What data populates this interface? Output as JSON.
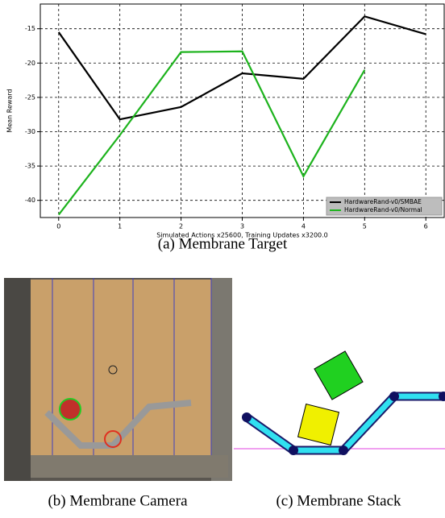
{
  "chart_data": {
    "type": "line",
    "xlabel": "Simulated Actions x25600, Training Updates x3200.0",
    "ylabel": "Mean Reward",
    "x": [
      0,
      1,
      2,
      3,
      4,
      5,
      6
    ],
    "series": [
      {
        "name": "HardwareRand-v0/SMBAE",
        "color": "#000000",
        "values": [
          -15.5,
          -28.2,
          -26.4,
          -21.5,
          -22.3,
          -13.2,
          -15.8
        ]
      },
      {
        "name": "HardwareRand-v0/Normal",
        "color": "#1db31d",
        "values": [
          -42.1,
          -30.5,
          -18.4,
          -18.3,
          -36.5,
          -21.0,
          null
        ]
      }
    ],
    "xlim": [
      -0.3,
      6.3
    ],
    "ylim": [
      -42.5,
      -11.4
    ],
    "xticks": [
      0,
      1,
      2,
      3,
      4,
      5,
      6
    ],
    "yticks": [
      -40,
      -35,
      -30,
      -25,
      -20,
      -15
    ],
    "grid": true,
    "legend": "lower right"
  },
  "captions": [
    "(a) Membrane Target",
    "(b) Membrane Camera",
    "(c) Membrane Stack"
  ]
}
